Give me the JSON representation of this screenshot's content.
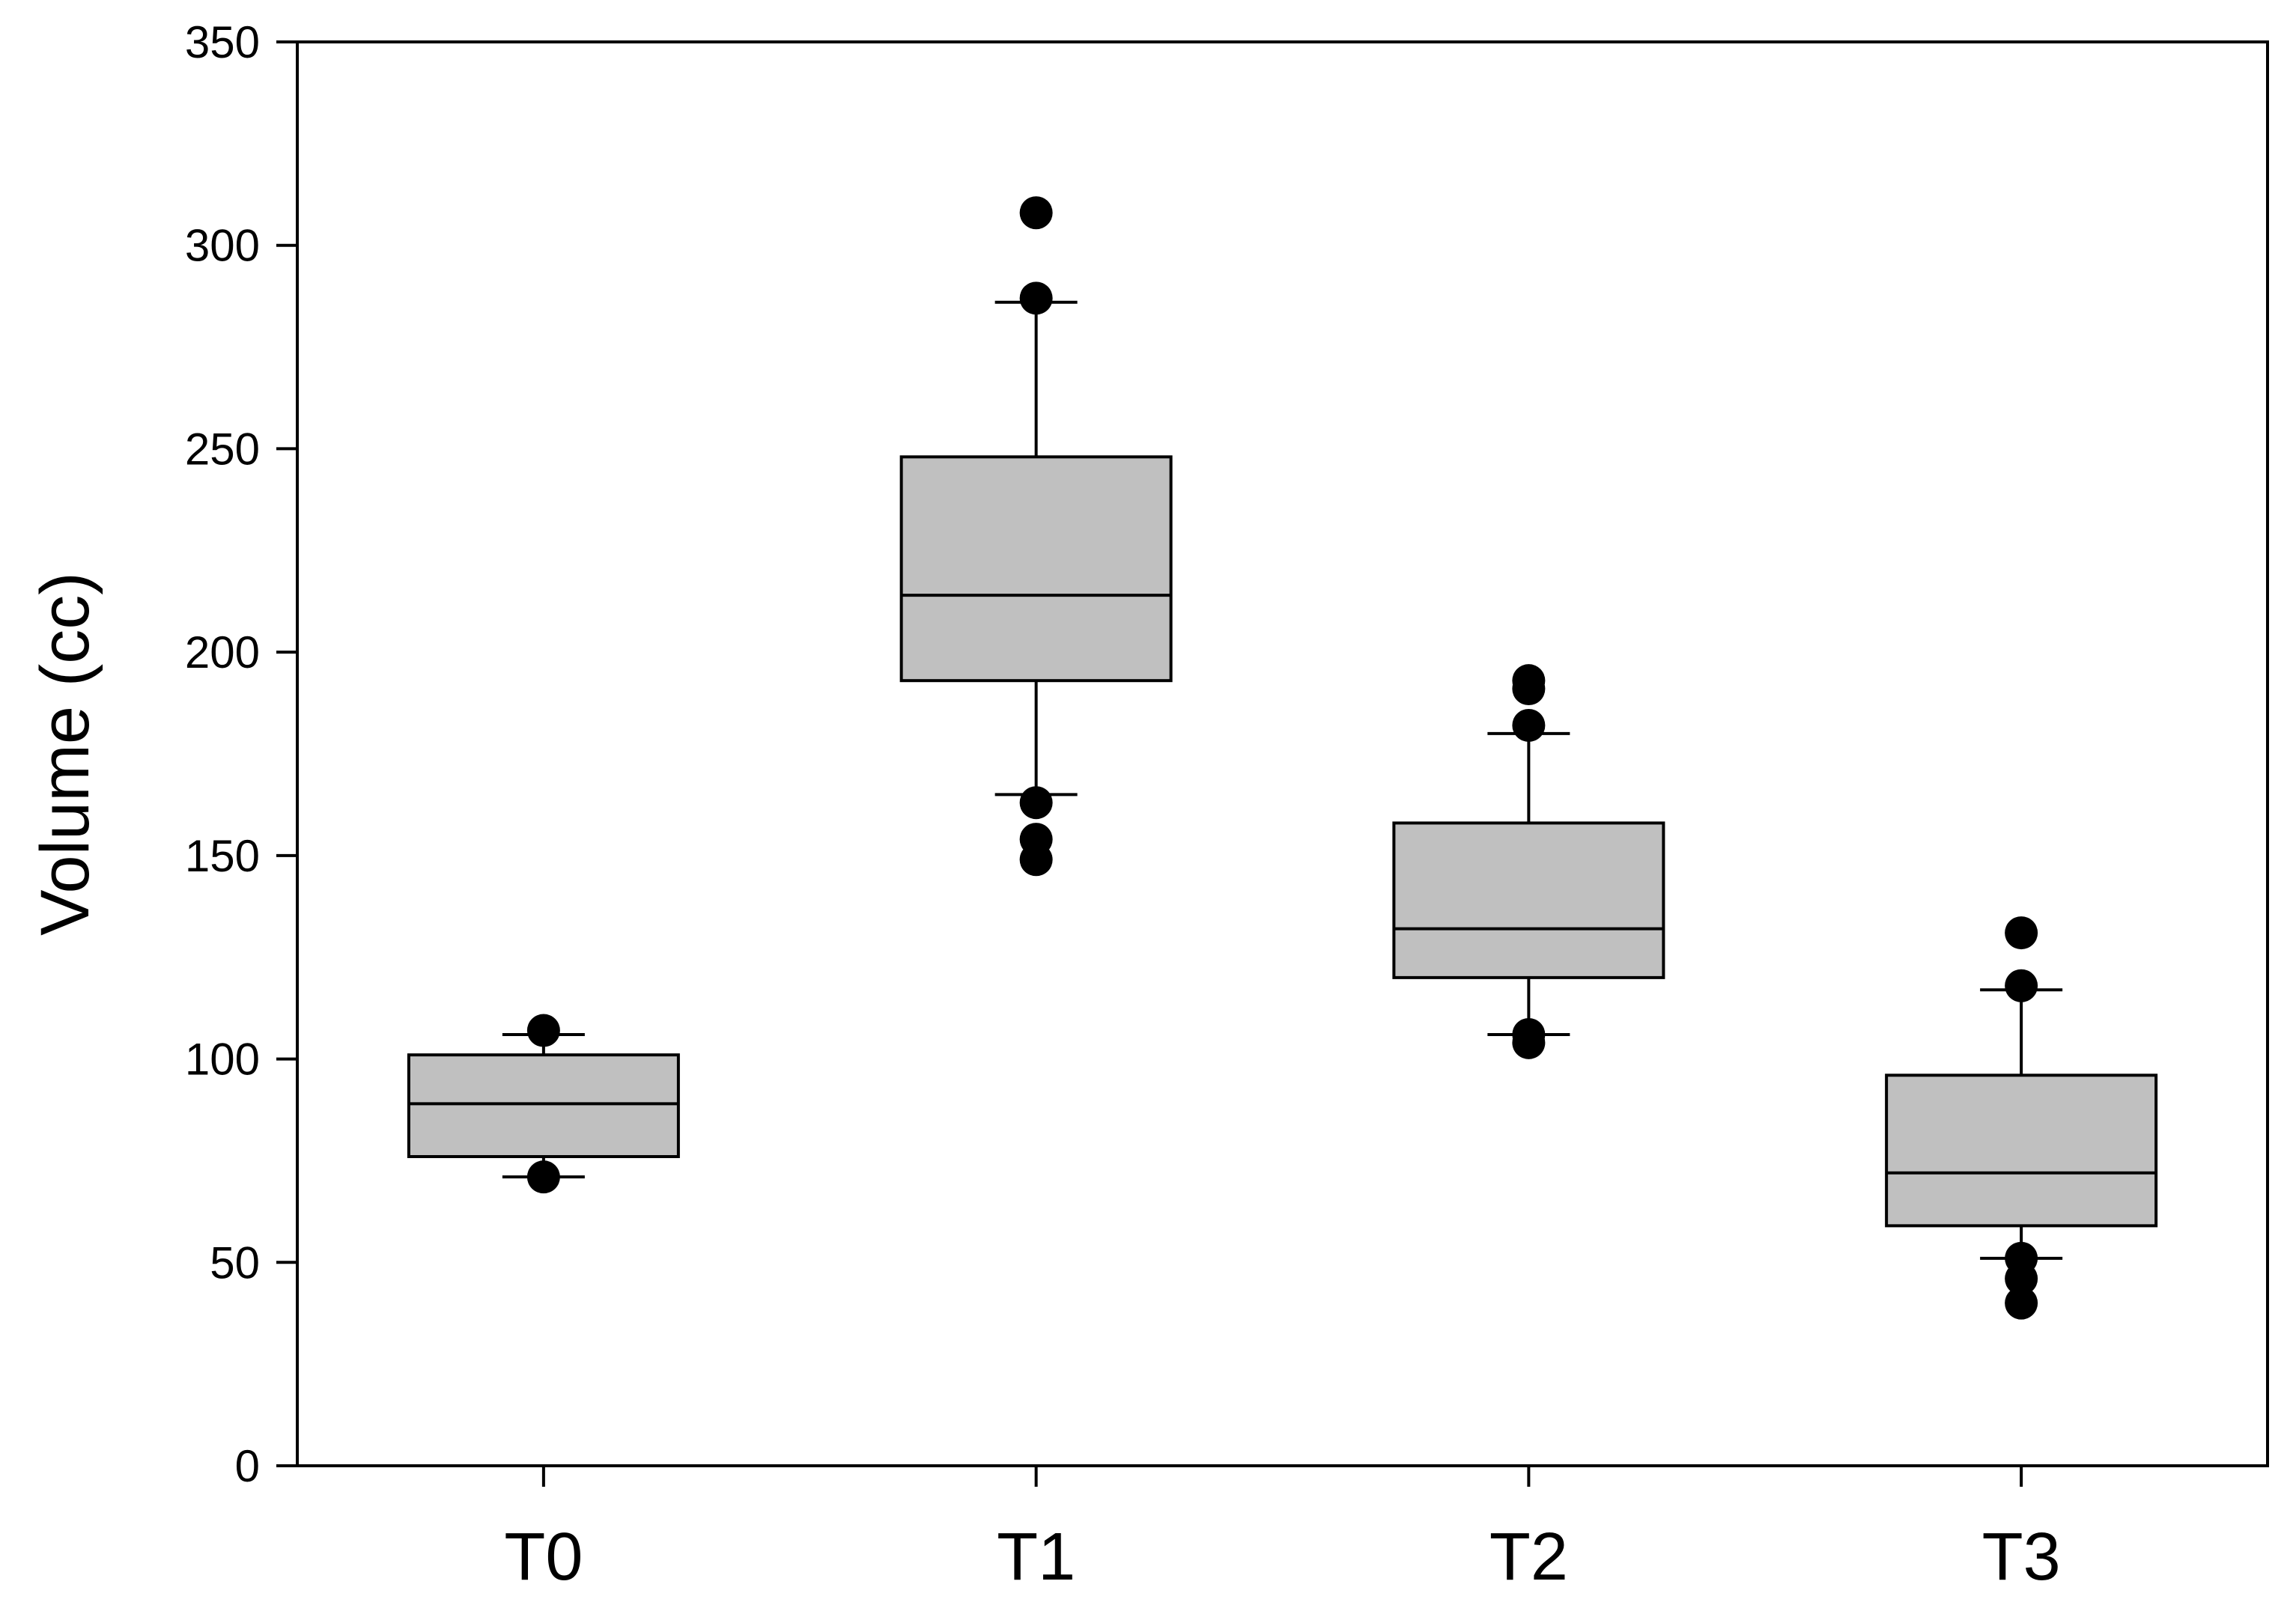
{
  "chart_data": {
    "type": "box",
    "xlabel": "",
    "ylabel": "Volume (cc)",
    "ylim": [
      0,
      350
    ],
    "yticks": [
      0,
      50,
      100,
      150,
      200,
      250,
      300,
      350
    ],
    "categories": [
      "T0",
      "T1",
      "T2",
      "T3"
    ],
    "grid": false,
    "legend": "none",
    "box_color": "#c0c0c0",
    "line_color": "#000000",
    "boxes": [
      {
        "category": "T0",
        "whisker_low": 71,
        "q1": 76,
        "median": 89,
        "q3": 101,
        "whisker_high": 106,
        "outliers": [
          107,
          71
        ]
      },
      {
        "category": "T1",
        "whisker_low": 165,
        "q1": 193,
        "median": 214,
        "q3": 248,
        "whisker_high": 286,
        "outliers": [
          308,
          287,
          163,
          154,
          149
        ]
      },
      {
        "category": "T2",
        "whisker_low": 106,
        "q1": 120,
        "median": 132,
        "q3": 158,
        "whisker_high": 180,
        "outliers": [
          193,
          191,
          182,
          106,
          104
        ]
      },
      {
        "category": "T3",
        "whisker_low": 51,
        "q1": 59,
        "median": 72,
        "q3": 96,
        "whisker_high": 117,
        "outliers": [
          131,
          118,
          51,
          46,
          40
        ]
      }
    ]
  }
}
